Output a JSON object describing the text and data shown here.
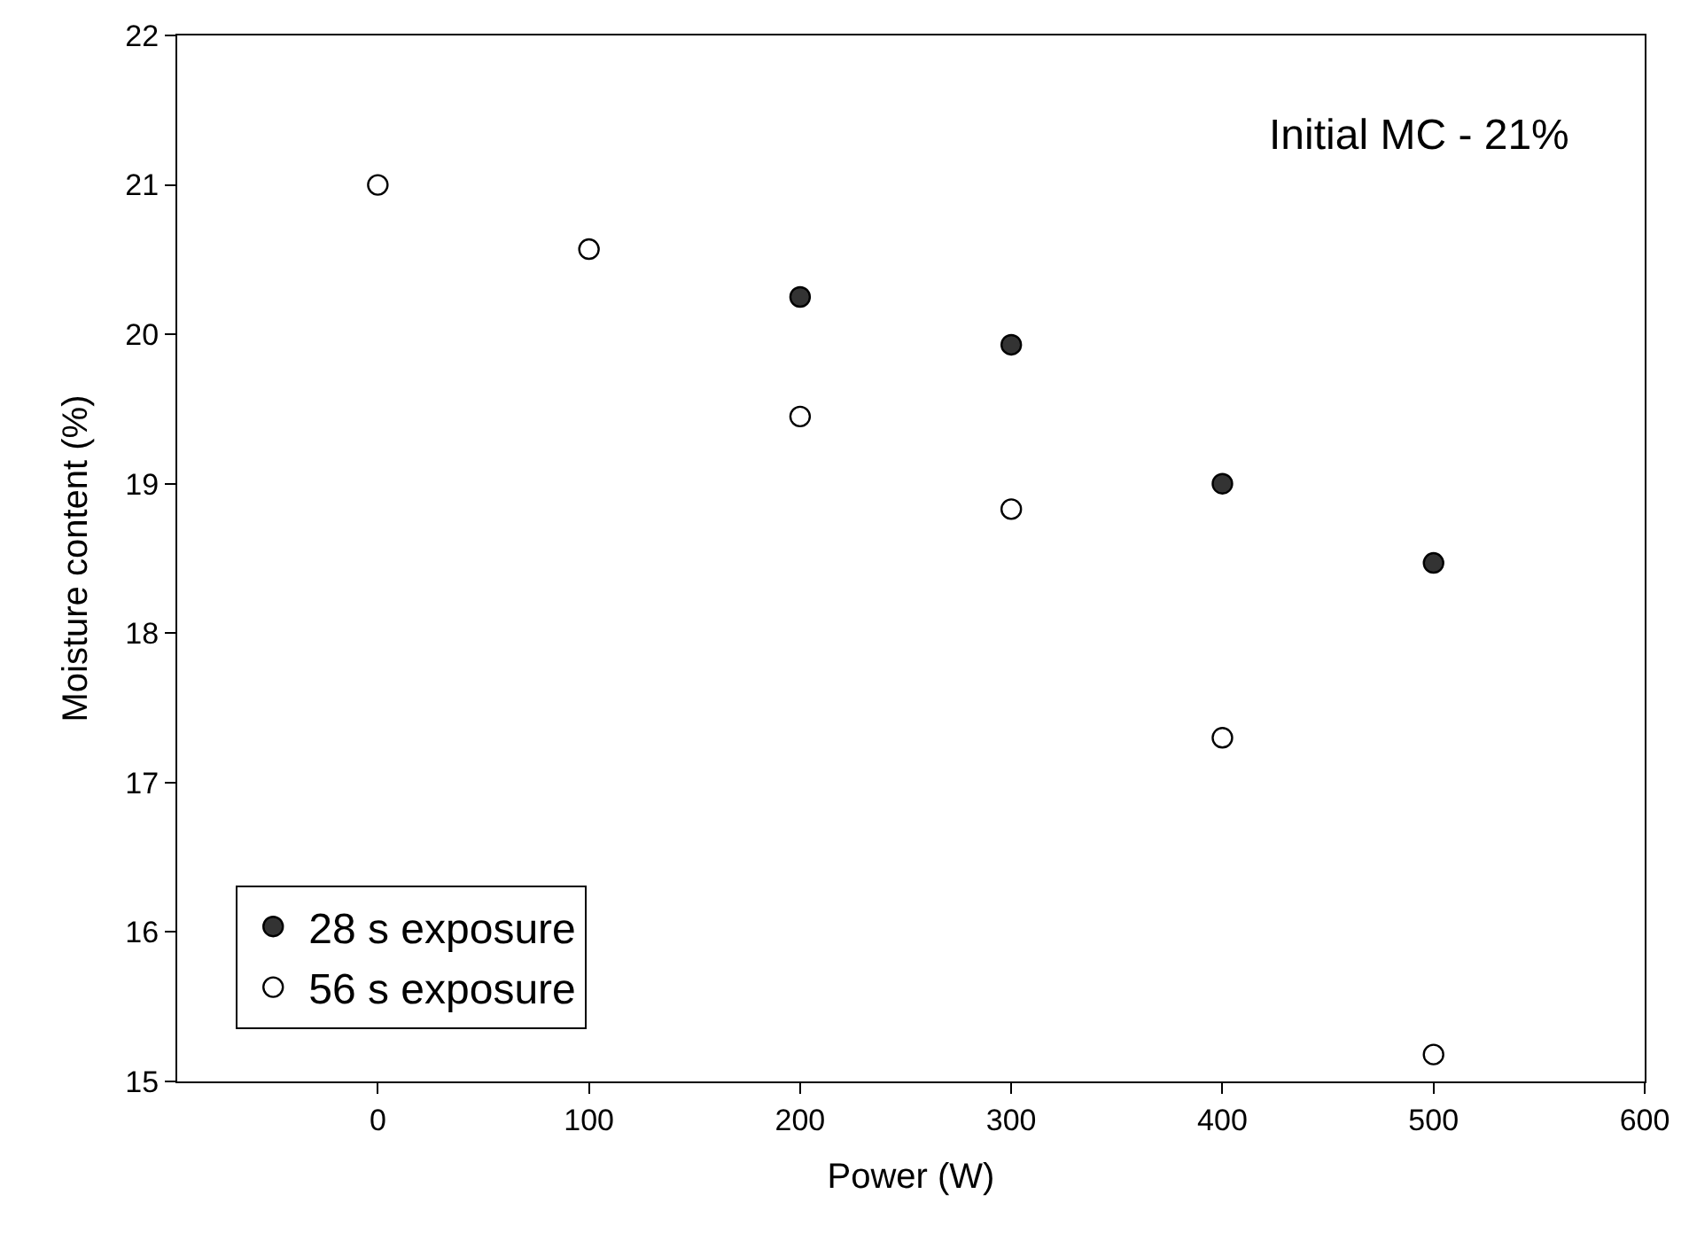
{
  "chart_data": {
    "type": "scatter",
    "xlabel": "Power (W)",
    "ylabel": "Moisture content (%)",
    "annotations": [
      "Initial MC - 21%"
    ],
    "xlim": [
      -95,
      600
    ],
    "xticks": [
      0,
      100,
      200,
      300,
      400,
      500,
      600
    ],
    "ylim": [
      15,
      22
    ],
    "yticks": [
      15,
      16,
      17,
      18,
      19,
      20,
      21,
      22
    ],
    "legend": "bottom left",
    "marker": "circle",
    "series": [
      {
        "name": "28 s exposure",
        "color": "#333333",
        "x": [
          200,
          300,
          400,
          500
        ],
        "values": [
          20.25,
          19.93,
          19.0,
          18.47
        ]
      },
      {
        "name": "56 s exposure",
        "color": "#ffffff",
        "x": [
          0,
          100,
          200,
          300,
          400,
          500
        ],
        "values": [
          21.0,
          20.57,
          19.45,
          18.83,
          17.3,
          15.18
        ]
      }
    ]
  }
}
